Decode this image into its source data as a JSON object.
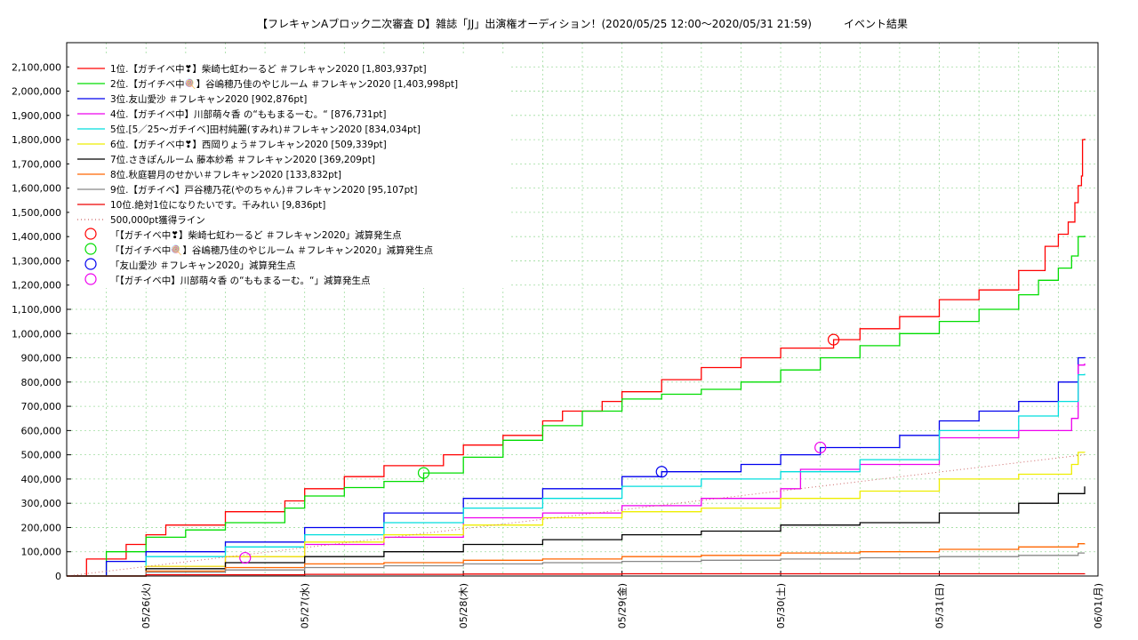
{
  "chart_data": {
    "type": "line",
    "title": "【フレキャンAブロック二次審査 D】雑誌「JJ」出演権オーディション！(2020/05/25 12:00～2020/05/31 21:59)　　　イベント結果",
    "x_ticks": [
      "05/26(火)",
      "05/27(水)",
      "05/28(木)",
      "05/29(金)",
      "05/30(土)",
      "05/31(日)",
      "06/01(月)"
    ],
    "xlim": [
      "2020/05/25 12:00",
      "2020/06/01 00:00"
    ],
    "ylim": [
      0,
      2200000
    ],
    "y_ticks": [
      "0",
      "100,000",
      "200,000",
      "300,000",
      "400,000",
      "500,000",
      "600,000",
      "700,000",
      "800,000",
      "900,000",
      "1,000,000",
      "1,100,000",
      "1,200,000",
      "1,300,000",
      "1,400,000",
      "1,500,000",
      "1,600,000",
      "1,700,000",
      "1,800,000",
      "1,900,000",
      "2,000,000",
      "2,100,000"
    ],
    "grid": true,
    "legend_placement": "top-left",
    "series": [
      {
        "name": "1位.【ガチイベ中❣】柴崎七虹わーるど ＃フレキャン2020 [1,803,937pt]",
        "color": "#ff0000",
        "points": [
          [
            "05/25 12:00",
            0
          ],
          [
            "05/25 15:00",
            70000
          ],
          [
            "05/25 21:00",
            130000
          ],
          [
            "05/26 00:00",
            170000
          ],
          [
            "05/26 03:00",
            210000
          ],
          [
            "05/26 12:00",
            265000
          ],
          [
            "05/26 21:00",
            310000
          ],
          [
            "05/27 00:00",
            360000
          ],
          [
            "05/27 06:00",
            410000
          ],
          [
            "05/27 12:00",
            455000
          ],
          [
            "05/27 21:00",
            500000
          ],
          [
            "05/28 00:00",
            540000
          ],
          [
            "05/28 06:00",
            580000
          ],
          [
            "05/28 12:00",
            640000
          ],
          [
            "05/28 15:00",
            680000
          ],
          [
            "05/28 21:00",
            720000
          ],
          [
            "05/29 00:00",
            760000
          ],
          [
            "05/29 06:00",
            810000
          ],
          [
            "05/29 12:00",
            860000
          ],
          [
            "05/29 18:00",
            900000
          ],
          [
            "05/30 00:00",
            940000
          ],
          [
            "05/30 08:00",
            975000
          ],
          [
            "05/30 12:00",
            1020000
          ],
          [
            "05/30 18:00",
            1070000
          ],
          [
            "05/31 00:00",
            1140000
          ],
          [
            "05/31 06:00",
            1180000
          ],
          [
            "05/31 12:00",
            1260000
          ],
          [
            "05/31 16:00",
            1360000
          ],
          [
            "05/31 18:00",
            1410000
          ],
          [
            "05/31 19:30",
            1460000
          ],
          [
            "05/31 20:30",
            1540000
          ],
          [
            "05/31 21:00",
            1610000
          ],
          [
            "05/31 21:30",
            1650000
          ],
          [
            "05/31 21:40",
            1800000
          ],
          [
            "05/31 21:59",
            1803937
          ]
        ]
      },
      {
        "name": "2位.【ガイチベ中🍭】谷嶋穂乃佳のやじルーム ＃フレキャン2020 [1,403,998pt]",
        "color": "#00dd00",
        "points": [
          [
            "05/25 12:00",
            0
          ],
          [
            "05/25 18:00",
            100000
          ],
          [
            "05/26 00:00",
            160000
          ],
          [
            "05/26 06:00",
            190000
          ],
          [
            "05/26 12:00",
            220000
          ],
          [
            "05/26 21:00",
            280000
          ],
          [
            "05/27 00:00",
            330000
          ],
          [
            "05/27 06:00",
            365000
          ],
          [
            "05/27 12:00",
            390000
          ],
          [
            "05/27 18:00",
            425000
          ],
          [
            "05/28 00:00",
            490000
          ],
          [
            "05/28 06:00",
            560000
          ],
          [
            "05/28 12:00",
            620000
          ],
          [
            "05/28 18:00",
            680000
          ],
          [
            "05/29 00:00",
            730000
          ],
          [
            "05/29 06:00",
            750000
          ],
          [
            "05/29 12:00",
            770000
          ],
          [
            "05/29 18:00",
            800000
          ],
          [
            "05/30 00:00",
            850000
          ],
          [
            "05/30 06:00",
            900000
          ],
          [
            "05/30 12:00",
            950000
          ],
          [
            "05/30 18:00",
            1000000
          ],
          [
            "05/31 00:00",
            1050000
          ],
          [
            "05/31 06:00",
            1100000
          ],
          [
            "05/31 12:00",
            1160000
          ],
          [
            "05/31 15:00",
            1220000
          ],
          [
            "05/31 18:00",
            1270000
          ],
          [
            "05/31 20:00",
            1320000
          ],
          [
            "05/31 21:00",
            1400000
          ],
          [
            "05/31 21:59",
            1403998
          ]
        ]
      },
      {
        "name": "3位.友山愛沙 ＃フレキャン2020 [902,876pt]",
        "color": "#0000ee",
        "points": [
          [
            "05/25 12:00",
            0
          ],
          [
            "05/25 18:00",
            60000
          ],
          [
            "05/26 00:00",
            100000
          ],
          [
            "05/26 12:00",
            140000
          ],
          [
            "05/27 00:00",
            200000
          ],
          [
            "05/27 12:00",
            260000
          ],
          [
            "05/28 00:00",
            320000
          ],
          [
            "05/28 12:00",
            360000
          ],
          [
            "05/29 00:00",
            410000
          ],
          [
            "05/29 06:00",
            430000
          ],
          [
            "05/29 18:00",
            460000
          ],
          [
            "05/30 00:00",
            500000
          ],
          [
            "05/30 06:00",
            530000
          ],
          [
            "05/30 18:00",
            580000
          ],
          [
            "05/31 00:00",
            640000
          ],
          [
            "05/31 06:00",
            680000
          ],
          [
            "05/31 12:00",
            720000
          ],
          [
            "05/31 18:00",
            800000
          ],
          [
            "05/31 21:00",
            900000
          ],
          [
            "05/31 21:59",
            902876
          ]
        ]
      },
      {
        "name": "4位.【ガチイベ中】川部萌々香 の“ももまるーむ。“ [876,731pt]",
        "color": "#ee00ee",
        "points": [
          [
            "05/25 12:00",
            0
          ],
          [
            "05/26 00:00",
            40000
          ],
          [
            "05/26 12:00",
            80000
          ],
          [
            "05/27 00:00",
            130000
          ],
          [
            "05/27 12:00",
            160000
          ],
          [
            "05/28 00:00",
            240000
          ],
          [
            "05/28 12:00",
            260000
          ],
          [
            "05/29 00:00",
            290000
          ],
          [
            "05/29 12:00",
            320000
          ],
          [
            "05/30 00:00",
            360000
          ],
          [
            "05/30 03:00",
            440000
          ],
          [
            "05/30 12:00",
            460000
          ],
          [
            "05/31 00:00",
            570000
          ],
          [
            "05/31 12:00",
            600000
          ],
          [
            "05/31 20:00",
            650000
          ],
          [
            "05/31 21:00",
            870000
          ],
          [
            "05/31 21:59",
            876731
          ]
        ]
      },
      {
        "name": "5位.[5／25～ガチイベ]田村純麗(すみれ)＃フレキャン2020 [834,034pt]",
        "color": "#00dddd",
        "points": [
          [
            "05/25 12:00",
            0
          ],
          [
            "05/26 00:00",
            80000
          ],
          [
            "05/26 12:00",
            120000
          ],
          [
            "05/27 00:00",
            170000
          ],
          [
            "05/27 12:00",
            220000
          ],
          [
            "05/28 00:00",
            280000
          ],
          [
            "05/28 12:00",
            320000
          ],
          [
            "05/29 00:00",
            370000
          ],
          [
            "05/29 12:00",
            400000
          ],
          [
            "05/30 00:00",
            430000
          ],
          [
            "05/30 12:00",
            480000
          ],
          [
            "05/31 00:00",
            600000
          ],
          [
            "05/31 12:00",
            660000
          ],
          [
            "05/31 18:00",
            720000
          ],
          [
            "05/31 21:00",
            830000
          ],
          [
            "05/31 21:59",
            834034
          ]
        ]
      },
      {
        "name": "6位.【ガチイベ中❣】西岡りょう＃フレキャン2020 [509,339pt]",
        "color": "#eeee00",
        "points": [
          [
            "05/25 12:00",
            0
          ],
          [
            "05/26 00:00",
            40000
          ],
          [
            "05/26 12:00",
            80000
          ],
          [
            "05/27 00:00",
            140000
          ],
          [
            "05/27 12:00",
            170000
          ],
          [
            "05/28 00:00",
            210000
          ],
          [
            "05/28 12:00",
            240000
          ],
          [
            "05/29 00:00",
            265000
          ],
          [
            "05/29 12:00",
            280000
          ],
          [
            "05/30 00:00",
            320000
          ],
          [
            "05/30 12:00",
            350000
          ],
          [
            "05/31 00:00",
            400000
          ],
          [
            "05/31 12:00",
            420000
          ],
          [
            "05/31 20:00",
            460000
          ],
          [
            "05/31 21:00",
            510000
          ],
          [
            "05/31 21:59",
            509339
          ]
        ]
      },
      {
        "name": "7位.さきぽんルーム 藤本紗希 ＃フレキャン2020 [369,209pt]",
        "color": "#000000",
        "points": [
          [
            "05/25 12:00",
            0
          ],
          [
            "05/26 00:00",
            30000
          ],
          [
            "05/26 12:00",
            55000
          ],
          [
            "05/27 00:00",
            80000
          ],
          [
            "05/27 12:00",
            100000
          ],
          [
            "05/28 00:00",
            130000
          ],
          [
            "05/28 12:00",
            150000
          ],
          [
            "05/29 00:00",
            170000
          ],
          [
            "05/29 12:00",
            185000
          ],
          [
            "05/30 00:00",
            210000
          ],
          [
            "05/30 12:00",
            220000
          ],
          [
            "05/31 00:00",
            260000
          ],
          [
            "05/31 12:00",
            300000
          ],
          [
            "05/31 18:00",
            340000
          ],
          [
            "05/31 21:59",
            369209
          ]
        ]
      },
      {
        "name": "8位.秋庭碧月のせかい＃フレキャン2020 [133,832pt]",
        "color": "#ff6600",
        "points": [
          [
            "05/25 12:00",
            0
          ],
          [
            "05/26 00:00",
            20000
          ],
          [
            "05/26 12:00",
            35000
          ],
          [
            "05/27 00:00",
            50000
          ],
          [
            "05/27 12:00",
            55000
          ],
          [
            "05/28 00:00",
            65000
          ],
          [
            "05/28 12:00",
            70000
          ],
          [
            "05/29 00:00",
            80000
          ],
          [
            "05/29 12:00",
            85000
          ],
          [
            "05/30 00:00",
            95000
          ],
          [
            "05/30 12:00",
            100000
          ],
          [
            "05/31 00:00",
            110000
          ],
          [
            "05/31 12:00",
            120000
          ],
          [
            "05/31 21:00",
            133000
          ],
          [
            "05/31 21:59",
            133832
          ]
        ]
      },
      {
        "name": "9位.【ガチイベ】戸谷穂乃花(やのちゃん)＃フレキャン2020 [95,107pt]",
        "color": "#888888",
        "points": [
          [
            "05/25 12:00",
            0
          ],
          [
            "05/26 00:00",
            15000
          ],
          [
            "05/26 12:00",
            25000
          ],
          [
            "05/27 00:00",
            35000
          ],
          [
            "05/27 12:00",
            42000
          ],
          [
            "05/28 00:00",
            50000
          ],
          [
            "05/28 12:00",
            55000
          ],
          [
            "05/29 00:00",
            60000
          ],
          [
            "05/29 12:00",
            65000
          ],
          [
            "05/30 00:00",
            70000
          ],
          [
            "05/30 12:00",
            75000
          ],
          [
            "05/31 00:00",
            80000
          ],
          [
            "05/31 12:00",
            85000
          ],
          [
            "05/31 21:00",
            95000
          ],
          [
            "05/31 21:59",
            95107
          ]
        ]
      },
      {
        "name": "10位.絶対1位になりたいです。千みれい [9,836pt]",
        "color": "#ee0000",
        "points": [
          [
            "05/25 12:00",
            0
          ],
          [
            "05/26 00:00",
            5000
          ],
          [
            "05/27 00:00",
            7000
          ],
          [
            "05/28 00:00",
            8000
          ],
          [
            "05/29 00:00",
            9000
          ],
          [
            "05/31 21:59",
            9836
          ]
        ]
      },
      {
        "name": "500,000pt獲得ライン",
        "color": "#cc6666",
        "dotted": true,
        "points": [
          [
            "05/25 12:00",
            0
          ],
          [
            "05/31 21:59",
            500000
          ]
        ]
      }
    ],
    "markers": [
      {
        "name": "「【ガチイベ中❣】柴崎七虹わーるど ＃フレキャン2020」減算発生点",
        "color": "#ff0000",
        "x": "05/30 08:00",
        "y": 975000
      },
      {
        "name": "「【ガイチベ中🍭】谷嶋穂乃佳のやじルーム ＃フレキャン2020」減算発生点",
        "color": "#00dd00",
        "x": "05/27 18:00",
        "y": 425000
      },
      {
        "name": "「友山愛沙 ＃フレキャン2020」減算発生点",
        "color": "#0000ee",
        "x": "05/29 06:00",
        "y": 430000
      },
      {
        "name": "「【ガチイベ中】川部萌々香 の“ももまるーむ。“」減算発生点",
        "color": "#ee00ee",
        "x": "05/30 06:00",
        "y": 530000
      },
      {
        "name": "",
        "color": "#ee00ee",
        "x": "05/26 15:00",
        "y": 75000
      }
    ]
  }
}
